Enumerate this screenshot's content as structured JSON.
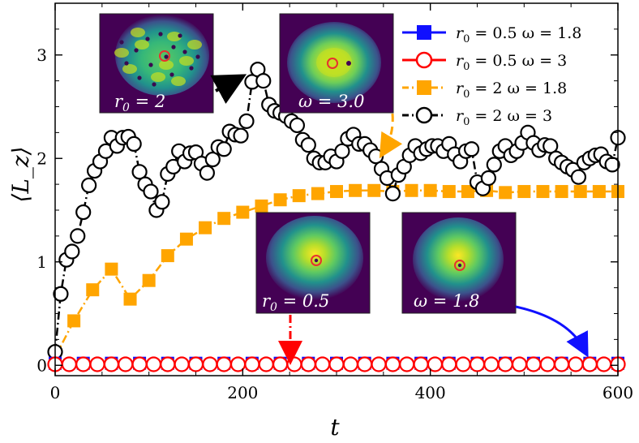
{
  "chart_data": {
    "type": "line",
    "xlabel": "t",
    "ylabel": "⟨L_z⟩",
    "xlim": [
      0,
      600
    ],
    "ylim": [
      -0.1,
      3.5
    ],
    "xticks": [
      0,
      200,
      400,
      600
    ],
    "xtick_labels": [
      "0",
      "200",
      "400",
      "600"
    ],
    "yticks": [
      0,
      1,
      2,
      3
    ],
    "ytick_labels": [
      "0",
      "1",
      "2",
      "3"
    ],
    "grid": false,
    "legend_position": "top-right",
    "series": [
      {
        "name": "r0 = 0.5  ω = 1.8",
        "label_parts": [
          "r",
          "0",
          " = 0.5  ω = 1.8"
        ],
        "color": "#1010ff",
        "line": "solid",
        "marker": "square-filled",
        "x": [
          0,
          30,
          60,
          90,
          120,
          150,
          180,
          210,
          240,
          270,
          300,
          330,
          360,
          390,
          420,
          450,
          480,
          510,
          540,
          570,
          600
        ],
        "y": [
          0.02,
          0.02,
          0.02,
          0.02,
          0.02,
          0.02,
          0.02,
          0.02,
          0.02,
          0.02,
          0.02,
          0.02,
          0.02,
          0.02,
          0.02,
          0.02,
          0.02,
          0.02,
          0.02,
          0.02,
          0.02
        ]
      },
      {
        "name": "r0 = 0.5  ω = 3",
        "label_parts": [
          "r",
          "0",
          " = 0.5  ω = 3"
        ],
        "color": "#ff0000",
        "line": "solid",
        "marker": "circle-open",
        "x": [
          0,
          15,
          30,
          45,
          60,
          75,
          90,
          105,
          120,
          135,
          150,
          165,
          180,
          195,
          210,
          225,
          240,
          255,
          270,
          285,
          300,
          315,
          330,
          345,
          360,
          375,
          390,
          405,
          420,
          435,
          450,
          465,
          480,
          495,
          510,
          525,
          540,
          555,
          570,
          585,
          600
        ],
        "y": [
          0.01,
          0.01,
          0.01,
          0.01,
          0.01,
          0.01,
          0.01,
          0.01,
          0.01,
          0.01,
          0.01,
          0.01,
          0.01,
          0.01,
          0.01,
          0.01,
          0.01,
          0.01,
          0.01,
          0.01,
          0.01,
          0.01,
          0.01,
          0.01,
          0.01,
          0.01,
          0.01,
          0.01,
          0.01,
          0.01,
          0.01,
          0.01,
          0.01,
          0.01,
          0.01,
          0.01,
          0.01,
          0.01,
          0.01,
          0.01,
          0.01
        ]
      },
      {
        "name": "r0 = 2  ω = 1.8",
        "label_parts": [
          "r",
          "0",
          " = 2  ω = 1.8"
        ],
        "color": "#ffa500",
        "line": "dashdot",
        "marker": "square-filled",
        "x": [
          0,
          20,
          40,
          60,
          80,
          100,
          120,
          140,
          160,
          180,
          200,
          220,
          240,
          260,
          280,
          300,
          320,
          340,
          360,
          380,
          400,
          420,
          440,
          460,
          480,
          500,
          520,
          540,
          560,
          580,
          600
        ],
        "y": [
          0.08,
          0.43,
          0.73,
          0.93,
          0.64,
          0.82,
          1.06,
          1.22,
          1.33,
          1.42,
          1.48,
          1.54,
          1.6,
          1.64,
          1.66,
          1.68,
          1.69,
          1.69,
          1.68,
          1.69,
          1.69,
          1.68,
          1.68,
          1.69,
          1.67,
          1.68,
          1.68,
          1.68,
          1.68,
          1.68,
          1.68
        ]
      },
      {
        "name": "r0 = 2  ω = 3",
        "label_parts": [
          "r",
          "0",
          " = 2  ω = 3"
        ],
        "color": "#000000",
        "line": "dashdot",
        "marker": "circle-open",
        "x": [
          0,
          6,
          12,
          18,
          24,
          30,
          36,
          42,
          48,
          54,
          60,
          66,
          72,
          78,
          84,
          90,
          96,
          102,
          108,
          114,
          120,
          126,
          132,
          138,
          144,
          150,
          156,
          162,
          168,
          174,
          180,
          186,
          192,
          198,
          204,
          210,
          216,
          222,
          228,
          234,
          240,
          246,
          252,
          258,
          264,
          270,
          276,
          282,
          288,
          294,
          300,
          306,
          312,
          318,
          324,
          330,
          336,
          342,
          348,
          354,
          360,
          366,
          372,
          378,
          384,
          390,
          396,
          402,
          408,
          414,
          420,
          426,
          432,
          438,
          444,
          450,
          456,
          462,
          468,
          474,
          480,
          486,
          492,
          498,
          504,
          510,
          516,
          522,
          528,
          534,
          540,
          546,
          552,
          558,
          564,
          570,
          576,
          582,
          588,
          594,
          600
        ],
        "y": [
          0.13,
          0.69,
          1.02,
          1.1,
          1.25,
          1.48,
          1.74,
          1.88,
          1.97,
          2.07,
          2.2,
          2.12,
          2.2,
          2.21,
          2.14,
          1.87,
          1.75,
          1.68,
          1.5,
          1.58,
          1.85,
          1.92,
          2.07,
          1.97,
          2.05,
          2.06,
          1.95,
          1.86,
          1.99,
          2.11,
          2.09,
          2.26,
          2.23,
          2.22,
          2.36,
          2.74,
          2.86,
          2.75,
          2.52,
          2.46,
          2.44,
          2.41,
          2.36,
          2.32,
          2.18,
          2.13,
          2.0,
          1.96,
          1.96,
          2.02,
          1.97,
          2.07,
          2.19,
          2.23,
          2.14,
          2.14,
          2.08,
          2.02,
          1.9,
          1.81,
          1.66,
          1.84,
          1.92,
          2.03,
          2.12,
          2.05,
          2.09,
          2.12,
          2.12,
          2.07,
          2.14,
          2.04,
          1.97,
          2.07,
          2.09,
          1.77,
          1.71,
          1.81,
          1.94,
          2.07,
          2.12,
          2.03,
          2.07,
          2.15,
          2.25,
          2.15,
          2.08,
          2.13,
          2.12,
          2.0,
          1.96,
          1.92,
          1.89,
          1.82,
          1.96,
          2.0,
          2.03,
          2.04,
          1.97,
          1.94,
          2.2
        ]
      }
    ],
    "insets": [
      {
        "id": "r0-2",
        "label_parts": [
          "r",
          "0",
          " = 2"
        ],
        "style": "turbulent"
      },
      {
        "id": "omega-3",
        "label": "ω = 3.0",
        "style": "ring"
      },
      {
        "id": "r0-05",
        "label_parts": [
          "r",
          "0",
          " = 0.5"
        ],
        "style": "smooth"
      },
      {
        "id": "omega-18",
        "label": "ω = 1.8",
        "style": "smooth"
      }
    ],
    "annotations": [
      {
        "from": "inset r0 = 2",
        "to_point": [
          200,
          2.75
        ],
        "color": "#000000"
      },
      {
        "from": "inset ω = 3.0",
        "to_point": [
          350,
          1.98
        ],
        "color": "#ffa500",
        "style": "dashed"
      },
      {
        "from": "inset r0 = 0.5",
        "to_point": [
          250,
          0.03
        ],
        "color": "#ff0000",
        "style": "dashdot"
      },
      {
        "from": "inset ω = 1.8",
        "to_point": [
          570,
          0.03
        ],
        "color": "#1010ff"
      }
    ],
    "colors": {
      "viridis_dark": "#440154",
      "viridis_mid": "#21918c",
      "viridis_bright": "#fde725",
      "marker_circle": "#e83030"
    }
  }
}
